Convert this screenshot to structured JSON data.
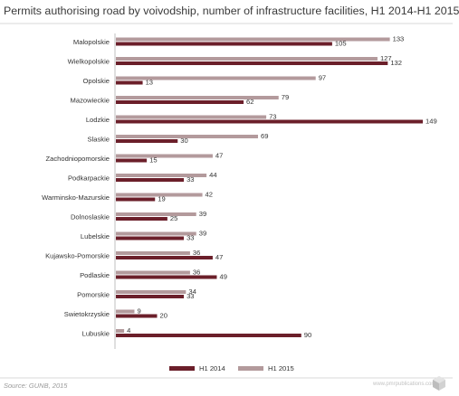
{
  "chart_data": {
    "type": "bar",
    "orientation": "horizontal",
    "title": "Permits authorising road by voivodship, number of infrastructure facilities, H1 2014-H1 2015",
    "categories": [
      "Malopolskie",
      "Wielkopolskie",
      "Opolskie",
      "Mazowieckie",
      "Lodzkie",
      "Slaskie",
      "Zachodniopomorskie",
      "Podkarpackie",
      "Warminsko-Mazurskie",
      "Dolnoslaskie",
      "Lubelskie",
      "Kujawsko-Pomorskie",
      "Podlaskie",
      "Pomorskie",
      "Swietokrzyskie",
      "Lubuskie"
    ],
    "series": [
      {
        "name": "H1 2015",
        "color": "#b39a9c",
        "values": [
          133,
          127,
          97,
          79,
          73,
          69,
          47,
          44,
          42,
          39,
          39,
          36,
          36,
          34,
          9,
          4
        ]
      },
      {
        "name": "H1 2014",
        "color": "#6b1f2a",
        "values": [
          105,
          132,
          13,
          62,
          149,
          30,
          15,
          33,
          19,
          25,
          33,
          47,
          49,
          33,
          20,
          90
        ]
      }
    ],
    "legend_order": [
      "H1 2014",
      "H1 2015"
    ],
    "legend": "bottom-center",
    "grid": false,
    "xlim": [
      0,
      149
    ]
  },
  "footer": {
    "source": "Source: GUNB, 2015",
    "credit": "www.pmrpublications.com"
  }
}
